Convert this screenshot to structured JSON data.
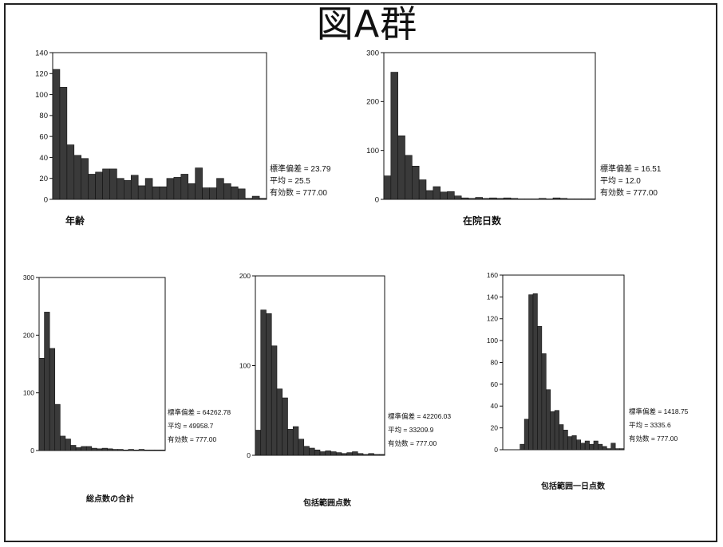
{
  "page": {
    "title": "図A群"
  },
  "chart_data": [
    {
      "type": "bar",
      "xlabel": "年齢",
      "ylabel": "",
      "ylim": [
        0,
        140
      ],
      "yticks": [
        0,
        20,
        40,
        60,
        80,
        100,
        120,
        140
      ],
      "values": [
        124,
        107,
        52,
        42,
        39,
        24,
        26,
        29,
        29,
        20,
        18,
        23,
        13,
        20,
        12,
        12,
        20,
        21,
        24,
        15,
        30,
        11,
        11,
        20,
        15,
        12,
        10,
        1,
        3,
        1
      ],
      "stats": [
        "標準偏差 = 23.79",
        "平均 = 25.5",
        "有効数 = 777.00"
      ]
    },
    {
      "type": "bar",
      "xlabel": "在院日数",
      "ylabel": "",
      "ylim": [
        0,
        300
      ],
      "yticks": [
        0,
        100,
        200,
        300
      ],
      "values": [
        48,
        260,
        130,
        90,
        68,
        40,
        18,
        26,
        15,
        16,
        7,
        3,
        2,
        4,
        2,
        3,
        2,
        3,
        2,
        1,
        1,
        1,
        2,
        1,
        3,
        2,
        1,
        1,
        1,
        1
      ],
      "stats": [
        "標準偏差 = 16.51",
        "平均 = 12.0",
        "有効数 = 777.00"
      ]
    },
    {
      "type": "bar",
      "xlabel": "総点数の合計",
      "ylabel": "",
      "ylim": [
        0,
        300
      ],
      "yticks": [
        0,
        100,
        200,
        300
      ],
      "values": [
        160,
        240,
        177,
        80,
        25,
        20,
        9,
        5,
        7,
        7,
        4,
        3,
        4,
        3,
        2,
        2,
        1,
        2,
        1,
        2,
        1,
        1,
        1,
        1
      ],
      "stats": [
        "標準偏差 = 64262.78",
        "平均 = 49958.7",
        "有効数 = 777.00"
      ]
    },
    {
      "type": "bar",
      "xlabel": "包括範囲点数",
      "ylabel": "",
      "ylim": [
        0,
        200
      ],
      "yticks": [
        0,
        100,
        200
      ],
      "values": [
        28,
        162,
        158,
        122,
        74,
        64,
        29,
        32,
        18,
        10,
        8,
        6,
        4,
        5,
        4,
        3,
        2,
        3,
        4,
        2,
        1,
        2,
        1,
        1
      ],
      "stats": [
        "標準偏差 = 42206.03",
        "平均 = 33209.9",
        "有効数 = 777.00"
      ]
    },
    {
      "type": "bar",
      "xlabel": "包括範囲一日点数",
      "ylabel": "",
      "ylim": [
        0,
        160
      ],
      "yticks": [
        0,
        20,
        40,
        60,
        80,
        100,
        120,
        140,
        160
      ],
      "values": [
        0,
        0,
        0,
        0,
        5,
        28,
        142,
        143,
        113,
        88,
        55,
        35,
        36,
        23,
        18,
        12,
        13,
        9,
        6,
        8,
        5,
        8,
        5,
        3,
        1,
        6,
        1,
        1
      ],
      "stats": [
        "標準偏差 = 1418.75",
        "平均 = 3335.6",
        "有効数 = 777.00"
      ]
    }
  ]
}
